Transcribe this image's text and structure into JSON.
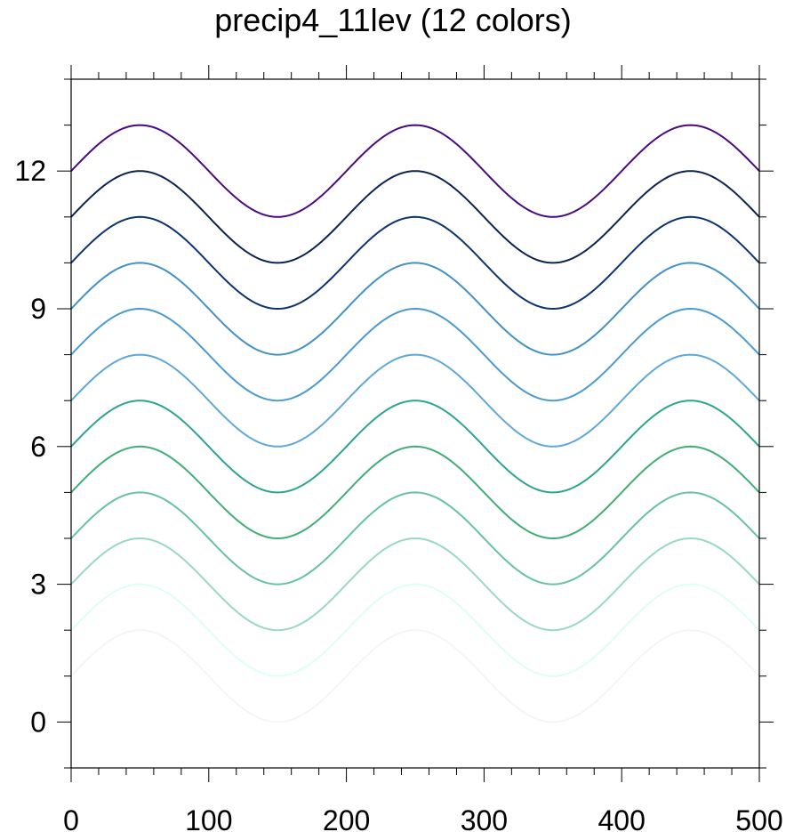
{
  "chart_data": {
    "type": "line",
    "title": "precip4_11lev (12 colors)",
    "xlabel": "",
    "ylabel": "",
    "xlim": [
      0,
      500
    ],
    "ylim": [
      -1,
      14
    ],
    "x_ticks": [
      0,
      100,
      200,
      300,
      400,
      500
    ],
    "y_ticks": [
      0,
      3,
      6,
      9,
      12
    ],
    "x_minor_step": 20,
    "y_minor_step": 1,
    "grid": false,
    "function": "y = offset + sin(2*pi*x/200)",
    "series": [
      {
        "offset": 1,
        "color": "#F5F5F5"
      },
      {
        "offset": 2,
        "color": "#DDFFF6"
      },
      {
        "offset": 3,
        "color": "#99D8C9"
      },
      {
        "offset": 4,
        "color": "#66C2A4"
      },
      {
        "offset": 5,
        "color": "#41AE76"
      },
      {
        "offset": 6,
        "color": "#2CA58D"
      },
      {
        "offset": 7,
        "color": "#5FA8D8"
      },
      {
        "offset": 8,
        "color": "#4A9BD2"
      },
      {
        "offset": 9,
        "color": "#4292C6"
      },
      {
        "offset": 10,
        "color": "#0D3470"
      },
      {
        "offset": 11,
        "color": "#0C2351"
      },
      {
        "offset": 12,
        "color": "#4B0A82"
      }
    ]
  }
}
